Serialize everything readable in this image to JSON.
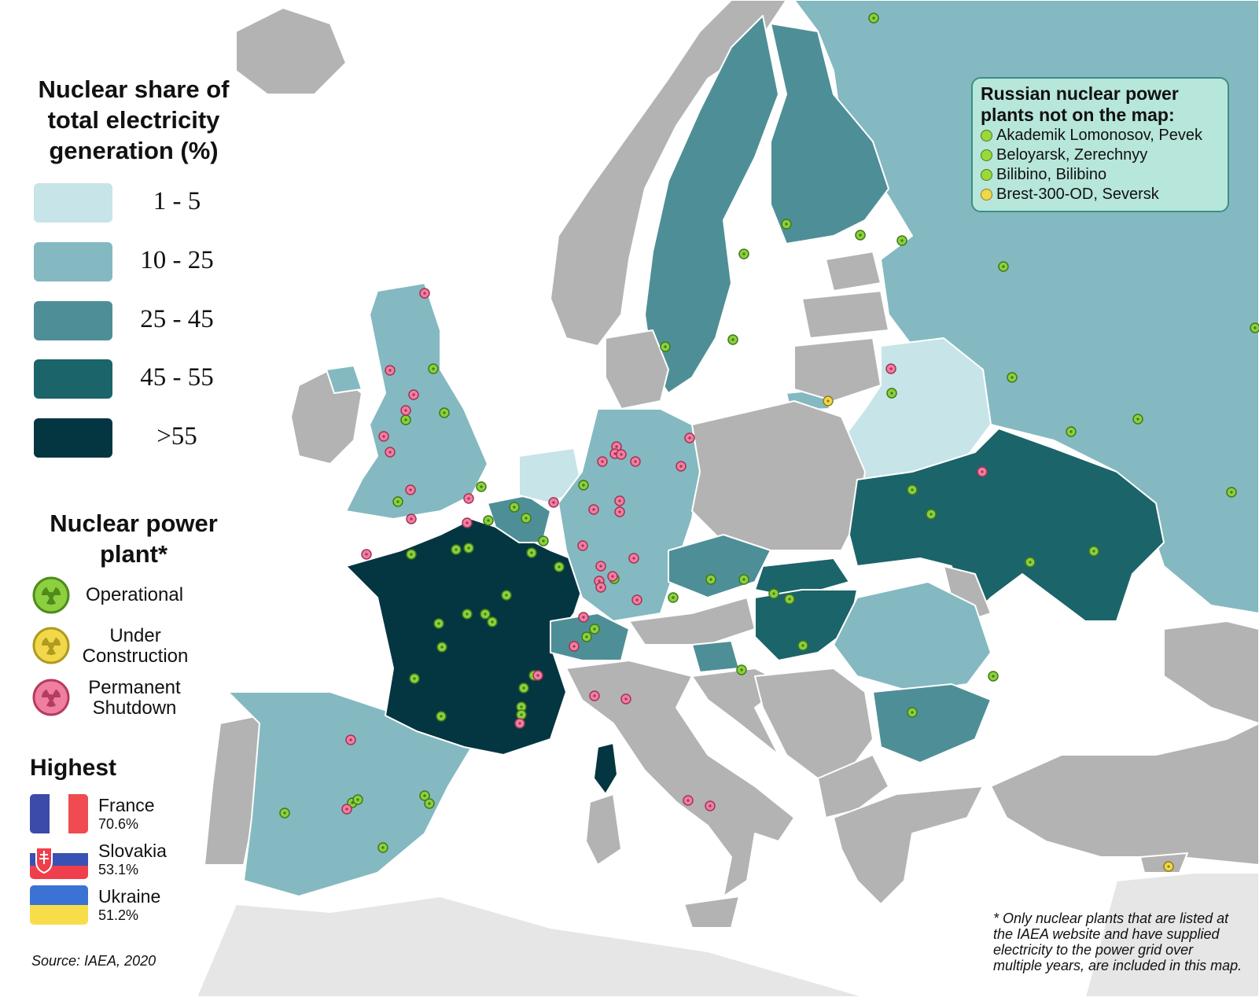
{
  "legend": {
    "title_lines": [
      "Nuclear share of",
      "total electricity",
      "generation (%)"
    ],
    "bins": [
      {
        "label": "1  -  5",
        "color": "#c7e4e8"
      },
      {
        "label": "10 - 25",
        "color": "#84b9c1"
      },
      {
        "label": "25 - 45",
        "color": "#4e8f97"
      },
      {
        "label": "45 - 55",
        "color": "#1b646a"
      },
      {
        "label": ">55",
        "color": "#043642"
      }
    ]
  },
  "plants_legend": {
    "title_lines": [
      "Nuclear power",
      "plant*"
    ],
    "items": [
      {
        "label_lines": [
          "Operational"
        ],
        "status": "operational",
        "color": "#8ccf3f"
      },
      {
        "label_lines": [
          "Under",
          "Construction"
        ],
        "status": "under_construction",
        "color": "#f1d84b"
      },
      {
        "label_lines": [
          "Permanent",
          "Shutdown"
        ],
        "status": "permanent_shutdown",
        "color": "#f07ea0"
      }
    ]
  },
  "highest": {
    "title": "Highest",
    "items": [
      {
        "country": "France",
        "value": "70.6%",
        "flag": "france-flag"
      },
      {
        "country": "Slovakia",
        "value": "53.1%",
        "flag": "slovakia-flag"
      },
      {
        "country": "Ukraine",
        "value": "51.2%",
        "flag": "ukraine-flag"
      }
    ]
  },
  "russia_box": {
    "title_lines": [
      "Russian nuclear power",
      "plants not on the map:"
    ],
    "items": [
      {
        "label": "Akademik Lomonosov, Pevek",
        "status": "operational"
      },
      {
        "label": "Beloyarsk, Zerechnyy",
        "status": "operational"
      },
      {
        "label": "Bilibino, Bilibino",
        "status": "operational"
      },
      {
        "label": "Brest-300-OD, Seversk",
        "status": "under_construction"
      }
    ]
  },
  "footnote": "* Only nuclear plants that are listed at the IAEA website and have supplied electricity to the power grid over multiple years, are included in this map.",
  "source": "Source: IAEA, 2020",
  "map_colors": {
    "sea": "#ffffff",
    "no_nuclear": "#b3b3b3",
    "outside": "#e6e6e6",
    "border": "#ffffff"
  },
  "country_categories": {
    "France": ">55",
    "Slovakia": "45 - 55",
    "Ukraine": "45 - 55",
    "Hungary": "45 - 55",
    "Belgium": "25 - 45",
    "Sweden": "25 - 45",
    "Finland": "25 - 45",
    "Czech Republic": "25 - 45",
    "Bulgaria": "25 - 45",
    "Slovenia": "25 - 45",
    "Switzerland": "25 - 45",
    "Spain": "10 - 25",
    "United Kingdom": "10 - 25",
    "Germany": "10 - 25",
    "Romania": "10 - 25",
    "Russia": "10 - 25",
    "Netherlands": "1  -  5",
    "Belarus": "1  -  5"
  }
}
